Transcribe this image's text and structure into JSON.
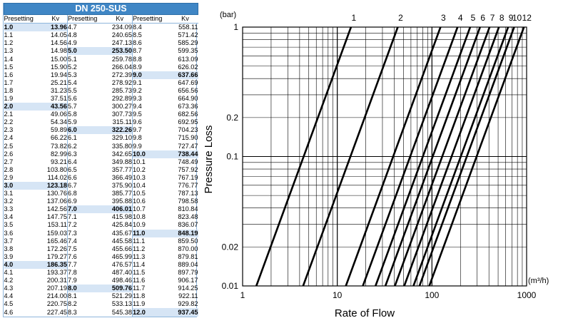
{
  "table": {
    "title": "DN 250-SUS",
    "col_header_presetting": "Presetting",
    "col_header_kv": "Kv",
    "columns": [
      [
        [
          "1.0",
          "13.96",
          1
        ],
        [
          "1.1",
          "14.05",
          0
        ],
        [
          "1.2",
          "14.56",
          0
        ],
        [
          "1.3",
          "14.98",
          0
        ],
        [
          "1.4",
          "15.00",
          0
        ],
        [
          "1.5",
          "15.90",
          0
        ],
        [
          "1.6",
          "19.94",
          0
        ],
        [
          "1.7",
          "25.21",
          0
        ],
        [
          "1.8",
          "31.23",
          0
        ],
        [
          "1.9",
          "37.51",
          0
        ],
        [
          "2.0",
          "43.56",
          1
        ],
        [
          "2.1",
          "49.06",
          0
        ],
        [
          "2.2",
          "54.34",
          0
        ],
        [
          "2.3",
          "59.89",
          0
        ],
        [
          "2.4",
          "66.22",
          0
        ],
        [
          "2.5",
          "73.82",
          0
        ],
        [
          "2.6",
          "82.99",
          0
        ],
        [
          "2.7",
          "93.21",
          0
        ],
        [
          "2.8",
          "103.80",
          0
        ],
        [
          "2.9",
          "114.02",
          0
        ],
        [
          "3.0",
          "123.18",
          1
        ],
        [
          "3.1",
          "130.76",
          0
        ],
        [
          "3.2",
          "137.06",
          0
        ],
        [
          "3.3",
          "142.56",
          0
        ],
        [
          "3.4",
          "147.75",
          0
        ],
        [
          "3.5",
          "153.11",
          0
        ],
        [
          "3.6",
          "159.03",
          0
        ],
        [
          "3.7",
          "165.46",
          0
        ],
        [
          "3.8",
          "172.26",
          0
        ],
        [
          "3.9",
          "179.27",
          0
        ],
        [
          "4.0",
          "186.35",
          1
        ],
        [
          "4.1",
          "193.37",
          0
        ],
        [
          "4.2",
          "200.31",
          0
        ],
        [
          "4.3",
          "207.19",
          0
        ],
        [
          "4.4",
          "214.00",
          0
        ],
        [
          "4.5",
          "220.75",
          0
        ],
        [
          "4.6",
          "227.45",
          0
        ]
      ],
      [
        [
          "4.7",
          "234.09",
          0
        ],
        [
          "4.8",
          "240.65",
          0
        ],
        [
          "4.9",
          "247.13",
          0
        ],
        [
          "5.0",
          "253.50",
          1
        ],
        [
          "5.1",
          "259.78",
          0
        ],
        [
          "5.2",
          "266.04",
          0
        ],
        [
          "5.3",
          "272.39",
          0
        ],
        [
          "5.4",
          "278.92",
          0
        ],
        [
          "5.5",
          "285.73",
          0
        ],
        [
          "5.6",
          "292.89",
          0
        ],
        [
          "5.7",
          "300.27",
          0
        ],
        [
          "5.8",
          "307.73",
          0
        ],
        [
          "5.9",
          "315.11",
          0
        ],
        [
          "6.0",
          "322.26",
          1
        ],
        [
          "6.1",
          "329.10",
          0
        ],
        [
          "6.2",
          "335.80",
          0
        ],
        [
          "6.3",
          "342.65",
          0
        ],
        [
          "6.4",
          "349.88",
          0
        ],
        [
          "6.5",
          "357.77",
          0
        ],
        [
          "6.6",
          "366.49",
          0
        ],
        [
          "6.7",
          "375.90",
          0
        ],
        [
          "6.8",
          "385.77",
          0
        ],
        [
          "6.9",
          "395.88",
          0
        ],
        [
          "7.0",
          "406.01",
          1
        ],
        [
          "7.1",
          "415.98",
          0
        ],
        [
          "7.2",
          "425.84",
          0
        ],
        [
          "7.3",
          "435.67",
          0
        ],
        [
          "7.4",
          "445.58",
          0
        ],
        [
          "7.5",
          "455.66",
          0
        ],
        [
          "7.6",
          "465.99",
          0
        ],
        [
          "7.7",
          "476.57",
          0
        ],
        [
          "7.8",
          "487.40",
          0
        ],
        [
          "7.9",
          "498.46",
          0
        ],
        [
          "8.0",
          "509.76",
          1
        ],
        [
          "8.1",
          "521.29",
          0
        ],
        [
          "8.2",
          "533.13",
          0
        ],
        [
          "8.3",
          "545.38",
          0
        ]
      ],
      [
        [
          "8.4",
          "558.11",
          0
        ],
        [
          "8.5",
          "571.42",
          0
        ],
        [
          "8.6",
          "585.29",
          0
        ],
        [
          "8.7",
          "599.35",
          0
        ],
        [
          "8.8",
          "613.09",
          0
        ],
        [
          "8.9",
          "626.02",
          0
        ],
        [
          "9.0",
          "637.66",
          1
        ],
        [
          "9.1",
          "647.69",
          0
        ],
        [
          "9.2",
          "656.56",
          0
        ],
        [
          "9.3",
          "664.90",
          0
        ],
        [
          "9.4",
          "673.36",
          0
        ],
        [
          "9.5",
          "682.56",
          0
        ],
        [
          "9.6",
          "692.95",
          0
        ],
        [
          "9.7",
          "704.23",
          0
        ],
        [
          "9.8",
          "715.90",
          0
        ],
        [
          "9.9",
          "727.47",
          0
        ],
        [
          "10.0",
          "738.44",
          1
        ],
        [
          "10.1",
          "748.49",
          0
        ],
        [
          "10.2",
          "757.92",
          0
        ],
        [
          "10.3",
          "767.19",
          0
        ],
        [
          "10.4",
          "776.77",
          0
        ],
        [
          "10.5",
          "787.13",
          0
        ],
        [
          "10.6",
          "798.58",
          0
        ],
        [
          "10.7",
          "810.84",
          0
        ],
        [
          "10.8",
          "823.48",
          0
        ],
        [
          "10.9",
          "836.07",
          0
        ],
        [
          "11.0",
          "848.19",
          1
        ],
        [
          "11.1",
          "859.50",
          0
        ],
        [
          "11.2",
          "870.00",
          0
        ],
        [
          "11.3",
          "879.81",
          0
        ],
        [
          "11.4",
          "889.04",
          0
        ],
        [
          "11.5",
          "897.79",
          0
        ],
        [
          "11.6",
          "906.17",
          0
        ],
        [
          "11.7",
          "914.25",
          0
        ],
        [
          "11.8",
          "922.11",
          0
        ],
        [
          "11.9",
          "929.82",
          0
        ],
        [
          "12.0",
          "937.45",
          1
        ]
      ]
    ]
  },
  "chart_data": {
    "type": "line",
    "xscale": "log",
    "yscale": "log",
    "xlim": [
      1,
      1000
    ],
    "ylim": [
      0.01,
      1
    ],
    "xlabel": "Rate of Flow",
    "ylabel": "Pressure Loss",
    "x_unit": "(m³/h)",
    "y_unit": "(bar)",
    "x_ticks": [
      "1",
      "10",
      "100",
      "1000"
    ],
    "y_ticks": [
      "1",
      "0.2",
      "0.1",
      "0.02",
      "0.01"
    ],
    "y_tick_values": [
      1,
      0.2,
      0.1,
      0.02,
      0.01
    ],
    "grid": true,
    "series": [
      {
        "name": "1",
        "kv": 13.96
      },
      {
        "name": "2",
        "kv": 43.56
      },
      {
        "name": "3",
        "kv": 123.18
      },
      {
        "name": "4",
        "kv": 186.35
      },
      {
        "name": "5",
        "kv": 253.5
      },
      {
        "name": "6",
        "kv": 322.26
      },
      {
        "name": "7",
        "kv": 406.01
      },
      {
        "name": "8",
        "kv": 509.76
      },
      {
        "name": "9",
        "kv": 637.66
      },
      {
        "name": "10",
        "kv": 738.44
      },
      {
        "name": "12",
        "kv": 937.45
      }
    ]
  }
}
